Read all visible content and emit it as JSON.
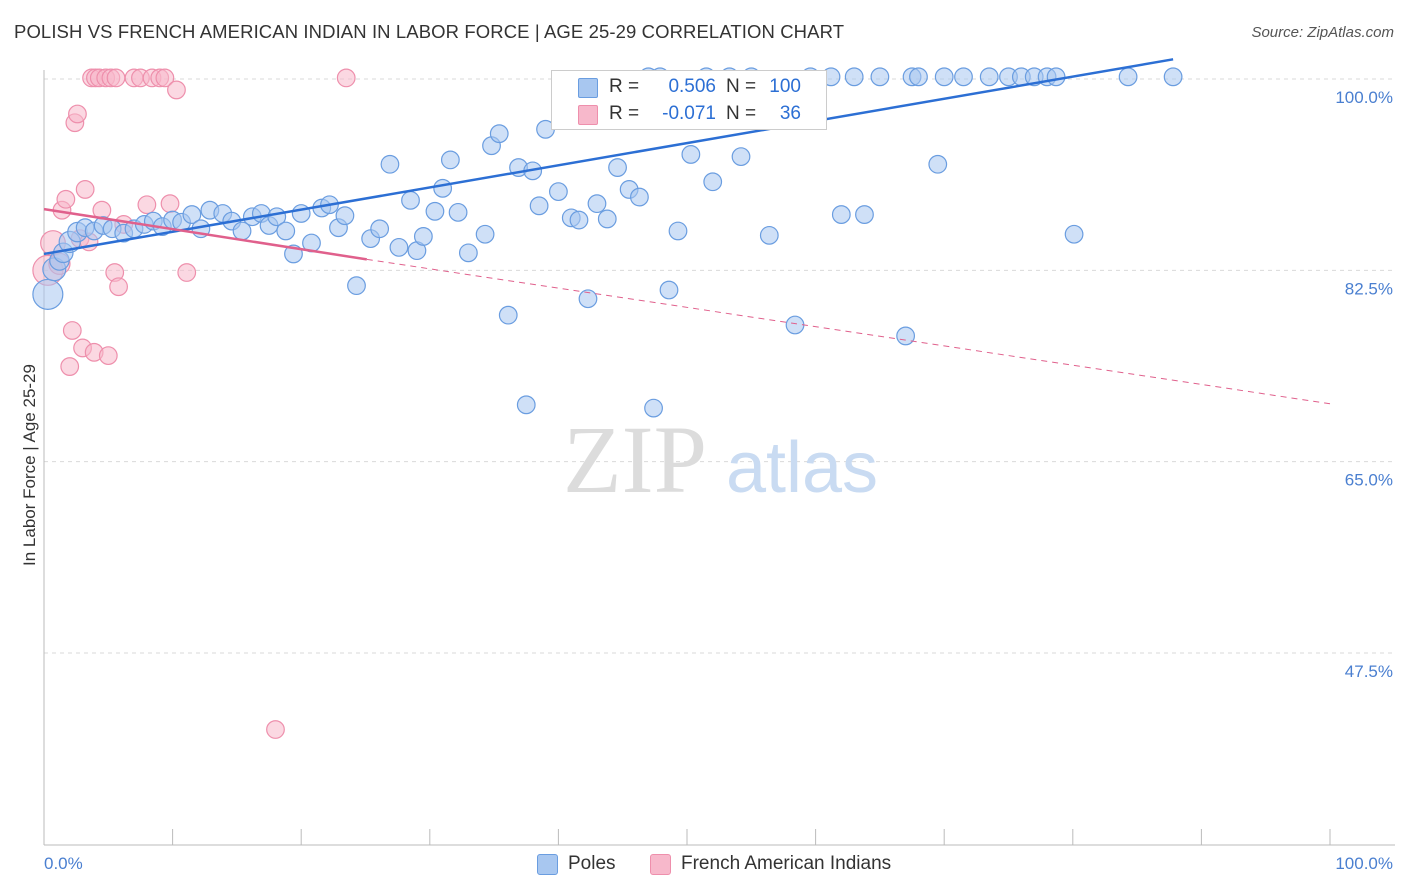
{
  "title": "POLISH VS FRENCH AMERICAN INDIAN IN LABOR FORCE | AGE 25-29 CORRELATION CHART",
  "source": "Source: ZipAtlas.com",
  "watermark": {
    "zip": "ZIP",
    "atlas": "atlas"
  },
  "colors": {
    "poles_fill": "#a8c7f0",
    "poles_stroke": "#6a9de0",
    "poles_line": "#2c6fd4",
    "fai_fill": "#f7b8cb",
    "fai_stroke": "#ee8fac",
    "fai_line": "#e0608c",
    "tick_text": "#4a7fd0",
    "grid": "#d9d9d9"
  },
  "legend": {
    "rows": [
      {
        "r_label": "R =",
        "r_value": "0.506",
        "n_label": "N =",
        "n_value": "100"
      },
      {
        "r_label": "R =",
        "r_value": "-0.071",
        "n_label": "N =",
        "n_value": "36"
      }
    ]
  },
  "bottom_legend": [
    "Poles",
    "French American Indians"
  ],
  "chart_data": {
    "type": "scatter",
    "ylabel": "In Labor Force | Age 25-29",
    "xlabel": "",
    "x_tick_labels": [
      "0.0%",
      "100.0%"
    ],
    "y_tick_labels": [
      "100.0%",
      "82.5%",
      "65.0%",
      "47.5%"
    ],
    "y_ticks": [
      100.0,
      82.5,
      65.0,
      47.5
    ],
    "xlim": [
      0,
      100
    ],
    "ylim": [
      30.5,
      102.5
    ],
    "grid": true,
    "legend_position": "top-center",
    "series": [
      {
        "name": "Poles",
        "r": 0.506,
        "n": 100,
        "trend": [
          [
            0,
            84.0
          ],
          [
            87.8,
            101.8
          ]
        ],
        "points": [
          [
            0.3,
            80.3,
            1.7
          ],
          [
            0.8,
            82.6,
            1.3
          ],
          [
            1.2,
            83.4,
            1.1
          ],
          [
            1.5,
            84.1,
            1.1
          ],
          [
            2.0,
            85.1,
            1.2
          ],
          [
            2.6,
            86.0,
            1.1
          ],
          [
            3.2,
            86.4,
            1.0
          ],
          [
            3.9,
            86.1,
            1.0
          ],
          [
            4.6,
            86.6,
            1.0
          ],
          [
            5.3,
            86.3,
            1.0
          ],
          [
            6.2,
            85.9,
            1.0
          ],
          [
            7.0,
            86.3,
            1.0
          ],
          [
            7.8,
            86.7,
            1.0
          ],
          [
            8.5,
            87.0,
            1.0
          ],
          [
            9.2,
            86.5,
            1.0
          ],
          [
            10.0,
            87.1,
            1.0
          ],
          [
            10.7,
            86.9,
            1.0
          ],
          [
            11.5,
            87.6,
            1.0
          ],
          [
            12.2,
            86.3,
            1.0
          ],
          [
            12.9,
            88.0,
            1.0
          ],
          [
            13.9,
            87.7,
            1.0
          ],
          [
            14.6,
            87.0,
            1.0
          ],
          [
            15.4,
            86.1,
            1.0
          ],
          [
            16.2,
            87.4,
            1.0
          ],
          [
            16.9,
            87.7,
            1.0
          ],
          [
            17.5,
            86.6,
            1.0
          ],
          [
            18.1,
            87.4,
            1.0
          ],
          [
            18.8,
            86.1,
            1.0
          ],
          [
            19.4,
            84.0,
            1.0
          ],
          [
            20.0,
            87.7,
            1.0
          ],
          [
            20.8,
            85.0,
            1.0
          ],
          [
            21.6,
            88.2,
            1.0
          ],
          [
            22.2,
            88.5,
            1.0
          ],
          [
            22.9,
            86.4,
            1.0
          ],
          [
            23.4,
            87.5,
            1.0
          ],
          [
            24.3,
            81.1,
            1.0
          ],
          [
            25.4,
            85.4,
            1.0
          ],
          [
            26.1,
            86.3,
            1.0
          ],
          [
            26.9,
            92.2,
            1.0
          ],
          [
            27.6,
            84.6,
            1.0
          ],
          [
            28.5,
            88.9,
            1.0
          ],
          [
            29.0,
            84.3,
            1.0
          ],
          [
            29.5,
            85.6,
            1.0
          ],
          [
            30.4,
            87.9,
            1.0
          ],
          [
            31.0,
            90.0,
            1.0
          ],
          [
            31.6,
            92.6,
            1.0
          ],
          [
            32.2,
            87.8,
            1.0
          ],
          [
            33.0,
            84.1,
            1.0
          ],
          [
            34.3,
            85.8,
            1.0
          ],
          [
            34.8,
            93.9,
            1.0
          ],
          [
            35.4,
            95.0,
            1.0
          ],
          [
            36.1,
            78.4,
            1.0
          ],
          [
            36.9,
            91.9,
            1.0
          ],
          [
            37.5,
            70.2,
            1.0
          ],
          [
            38.0,
            91.6,
            1.0
          ],
          [
            38.5,
            88.4,
            1.0
          ],
          [
            39.0,
            95.4,
            1.0
          ],
          [
            40.0,
            89.7,
            1.0
          ],
          [
            41.0,
            87.3,
            1.0
          ],
          [
            41.6,
            87.1,
            1.0
          ],
          [
            42.3,
            79.9,
            1.0
          ],
          [
            43.0,
            88.6,
            1.0
          ],
          [
            43.8,
            87.2,
            1.0
          ],
          [
            44.6,
            91.9,
            1.0
          ],
          [
            45.0,
            97.0,
            1.0
          ],
          [
            45.5,
            89.9,
            1.0
          ],
          [
            46.3,
            89.2,
            1.0
          ],
          [
            47.0,
            100.2,
            1.0
          ],
          [
            47.4,
            69.9,
            1.0
          ],
          [
            47.9,
            100.2,
            1.0
          ],
          [
            48.6,
            80.7,
            1.0
          ],
          [
            49.3,
            86.1,
            1.0
          ],
          [
            50.3,
            93.1,
            1.0
          ],
          [
            51.5,
            100.2,
            1.0
          ],
          [
            52.0,
            90.6,
            1.0
          ],
          [
            53.3,
            100.2,
            1.0
          ],
          [
            54.2,
            92.9,
            1.0
          ],
          [
            55.0,
            100.2,
            1.0
          ],
          [
            56.4,
            85.7,
            1.0
          ],
          [
            58.4,
            77.5,
            1.0
          ],
          [
            59.6,
            100.2,
            1.0
          ],
          [
            61.2,
            100.2,
            1.0
          ],
          [
            62.0,
            87.6,
            1.0
          ],
          [
            63.0,
            100.2,
            1.0
          ],
          [
            63.8,
            87.6,
            1.0
          ],
          [
            65.0,
            100.2,
            1.0
          ],
          [
            67.0,
            76.5,
            1.0
          ],
          [
            67.5,
            100.2,
            1.0
          ],
          [
            68.0,
            100.2,
            1.0
          ],
          [
            69.5,
            92.2,
            1.0
          ],
          [
            70.0,
            100.2,
            1.0
          ],
          [
            71.5,
            100.2,
            1.0
          ],
          [
            73.5,
            100.2,
            1.0
          ],
          [
            75.0,
            100.2,
            1.0
          ],
          [
            76.0,
            100.2,
            1.0
          ],
          [
            77.0,
            100.2,
            1.0
          ],
          [
            78.0,
            100.2,
            1.0
          ],
          [
            78.7,
            100.2,
            1.0
          ],
          [
            80.1,
            85.8,
            1.0
          ],
          [
            84.3,
            100.2,
            1.0
          ],
          [
            87.8,
            100.2,
            1.0
          ]
        ]
      },
      {
        "name": "French American Indians",
        "r": -0.071,
        "n": 36,
        "trend_solid": [
          [
            0,
            88.1
          ],
          [
            25.1,
            83.5
          ]
        ],
        "trend_dashed": [
          [
            25.1,
            83.5
          ],
          [
            100,
            70.3
          ]
        ],
        "points": [
          [
            0.3,
            82.5,
            1.7
          ],
          [
            0.7,
            85.0,
            1.4
          ],
          [
            1.2,
            83.1,
            1.2
          ],
          [
            1.4,
            88.0,
            1.0
          ],
          [
            1.7,
            89.0,
            1.0
          ],
          [
            2.0,
            73.7,
            1.0
          ],
          [
            2.2,
            77.0,
            1.0
          ],
          [
            2.4,
            96.0,
            1.0
          ],
          [
            2.6,
            96.8,
            1.0
          ],
          [
            2.8,
            85.4,
            1.0
          ],
          [
            3.0,
            75.4,
            1.0
          ],
          [
            3.2,
            89.9,
            1.0
          ],
          [
            3.5,
            85.1,
            1.0
          ],
          [
            3.7,
            100.1,
            1.0
          ],
          [
            3.9,
            75.0,
            1.0
          ],
          [
            4.0,
            100.1,
            1.0
          ],
          [
            4.3,
            100.1,
            1.0
          ],
          [
            4.5,
            88.0,
            1.0
          ],
          [
            4.8,
            100.1,
            1.0
          ],
          [
            5.0,
            74.7,
            1.0
          ],
          [
            5.2,
            100.1,
            1.0
          ],
          [
            5.5,
            82.3,
            1.0
          ],
          [
            5.6,
            100.1,
            1.0
          ],
          [
            5.8,
            81.0,
            1.0
          ],
          [
            6.2,
            86.7,
            1.0
          ],
          [
            7.0,
            100.1,
            1.0
          ],
          [
            7.5,
            100.1,
            1.0
          ],
          [
            8.0,
            88.5,
            1.0
          ],
          [
            8.4,
            100.1,
            1.0
          ],
          [
            9.0,
            100.1,
            1.0
          ],
          [
            9.4,
            100.1,
            1.0
          ],
          [
            9.8,
            88.6,
            1.0
          ],
          [
            10.3,
            99.0,
            1.0
          ],
          [
            11.1,
            82.3,
            1.0
          ],
          [
            18.0,
            40.5,
            1.0
          ],
          [
            23.5,
            100.1,
            1.0
          ]
        ]
      }
    ]
  }
}
